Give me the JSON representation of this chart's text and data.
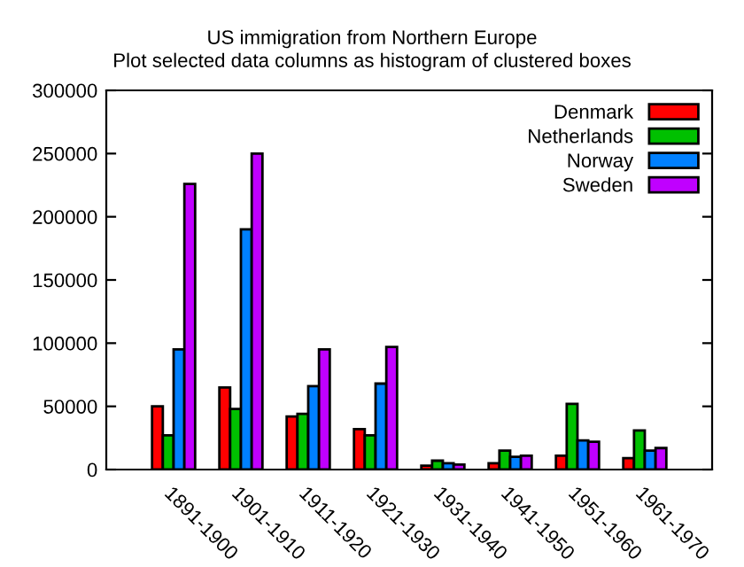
{
  "chart_data": {
    "type": "bar",
    "title": "US immigration from Northern Europe",
    "subtitle": "Plot selected data columns as histogram of clustered boxes",
    "categories": [
      "1891-1900",
      "1901-1910",
      "1911-1920",
      "1921-1930",
      "1931-1940",
      "1941-1950",
      "1951-1960",
      "1961-1970"
    ],
    "series": [
      {
        "name": "Denmark",
        "color": "#ff0000",
        "values": [
          50000,
          65000,
          42000,
          32000,
          3000,
          5000,
          11000,
          9000
        ]
      },
      {
        "name": "Netherlands",
        "color": "#00c000",
        "values": [
          27000,
          48000,
          44000,
          27000,
          7000,
          15000,
          52000,
          31000
        ]
      },
      {
        "name": "Norway",
        "color": "#0080ff",
        "values": [
          95000,
          190000,
          66000,
          68000,
          5000,
          10000,
          23000,
          15000
        ]
      },
      {
        "name": "Sweden",
        "color": "#c000ff",
        "values": [
          226000,
          250000,
          95000,
          97000,
          4000,
          11000,
          22000,
          17000
        ]
      }
    ],
    "ylim": [
      0,
      300000
    ],
    "yticks": [
      0,
      50000,
      100000,
      150000,
      200000,
      250000,
      300000
    ],
    "grid": false,
    "legend": "top right"
  }
}
